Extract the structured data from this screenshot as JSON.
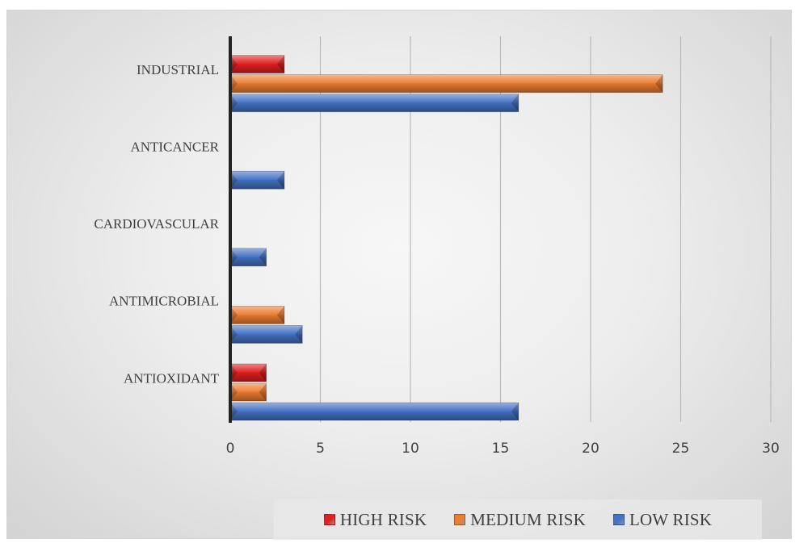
{
  "chart_data": {
    "type": "bar",
    "orientation": "horizontal",
    "categories": [
      "ANTIOXIDANT",
      "ANTIMICROBIAL",
      "CARDIOVASCULAR",
      "ANTICANCER",
      "INDUSTRIAL"
    ],
    "series": [
      {
        "name": "LOW RISK",
        "color": "#4472c4",
        "values": [
          16,
          4,
          2,
          3,
          16
        ]
      },
      {
        "name": "MEDIUM RISK",
        "color": "#ed7d31",
        "values": [
          2,
          3,
          0,
          0,
          24
        ]
      },
      {
        "name": "HIGH RISK",
        "color": "#e02020",
        "values": [
          2,
          0,
          0,
          0,
          3
        ]
      }
    ],
    "xlim": [
      0,
      30
    ],
    "xticks": [
      0,
      5,
      10,
      15,
      20,
      25,
      30
    ],
    "grid": true,
    "legend_position": "bottom"
  },
  "legend_order": [
    2,
    1,
    0
  ]
}
